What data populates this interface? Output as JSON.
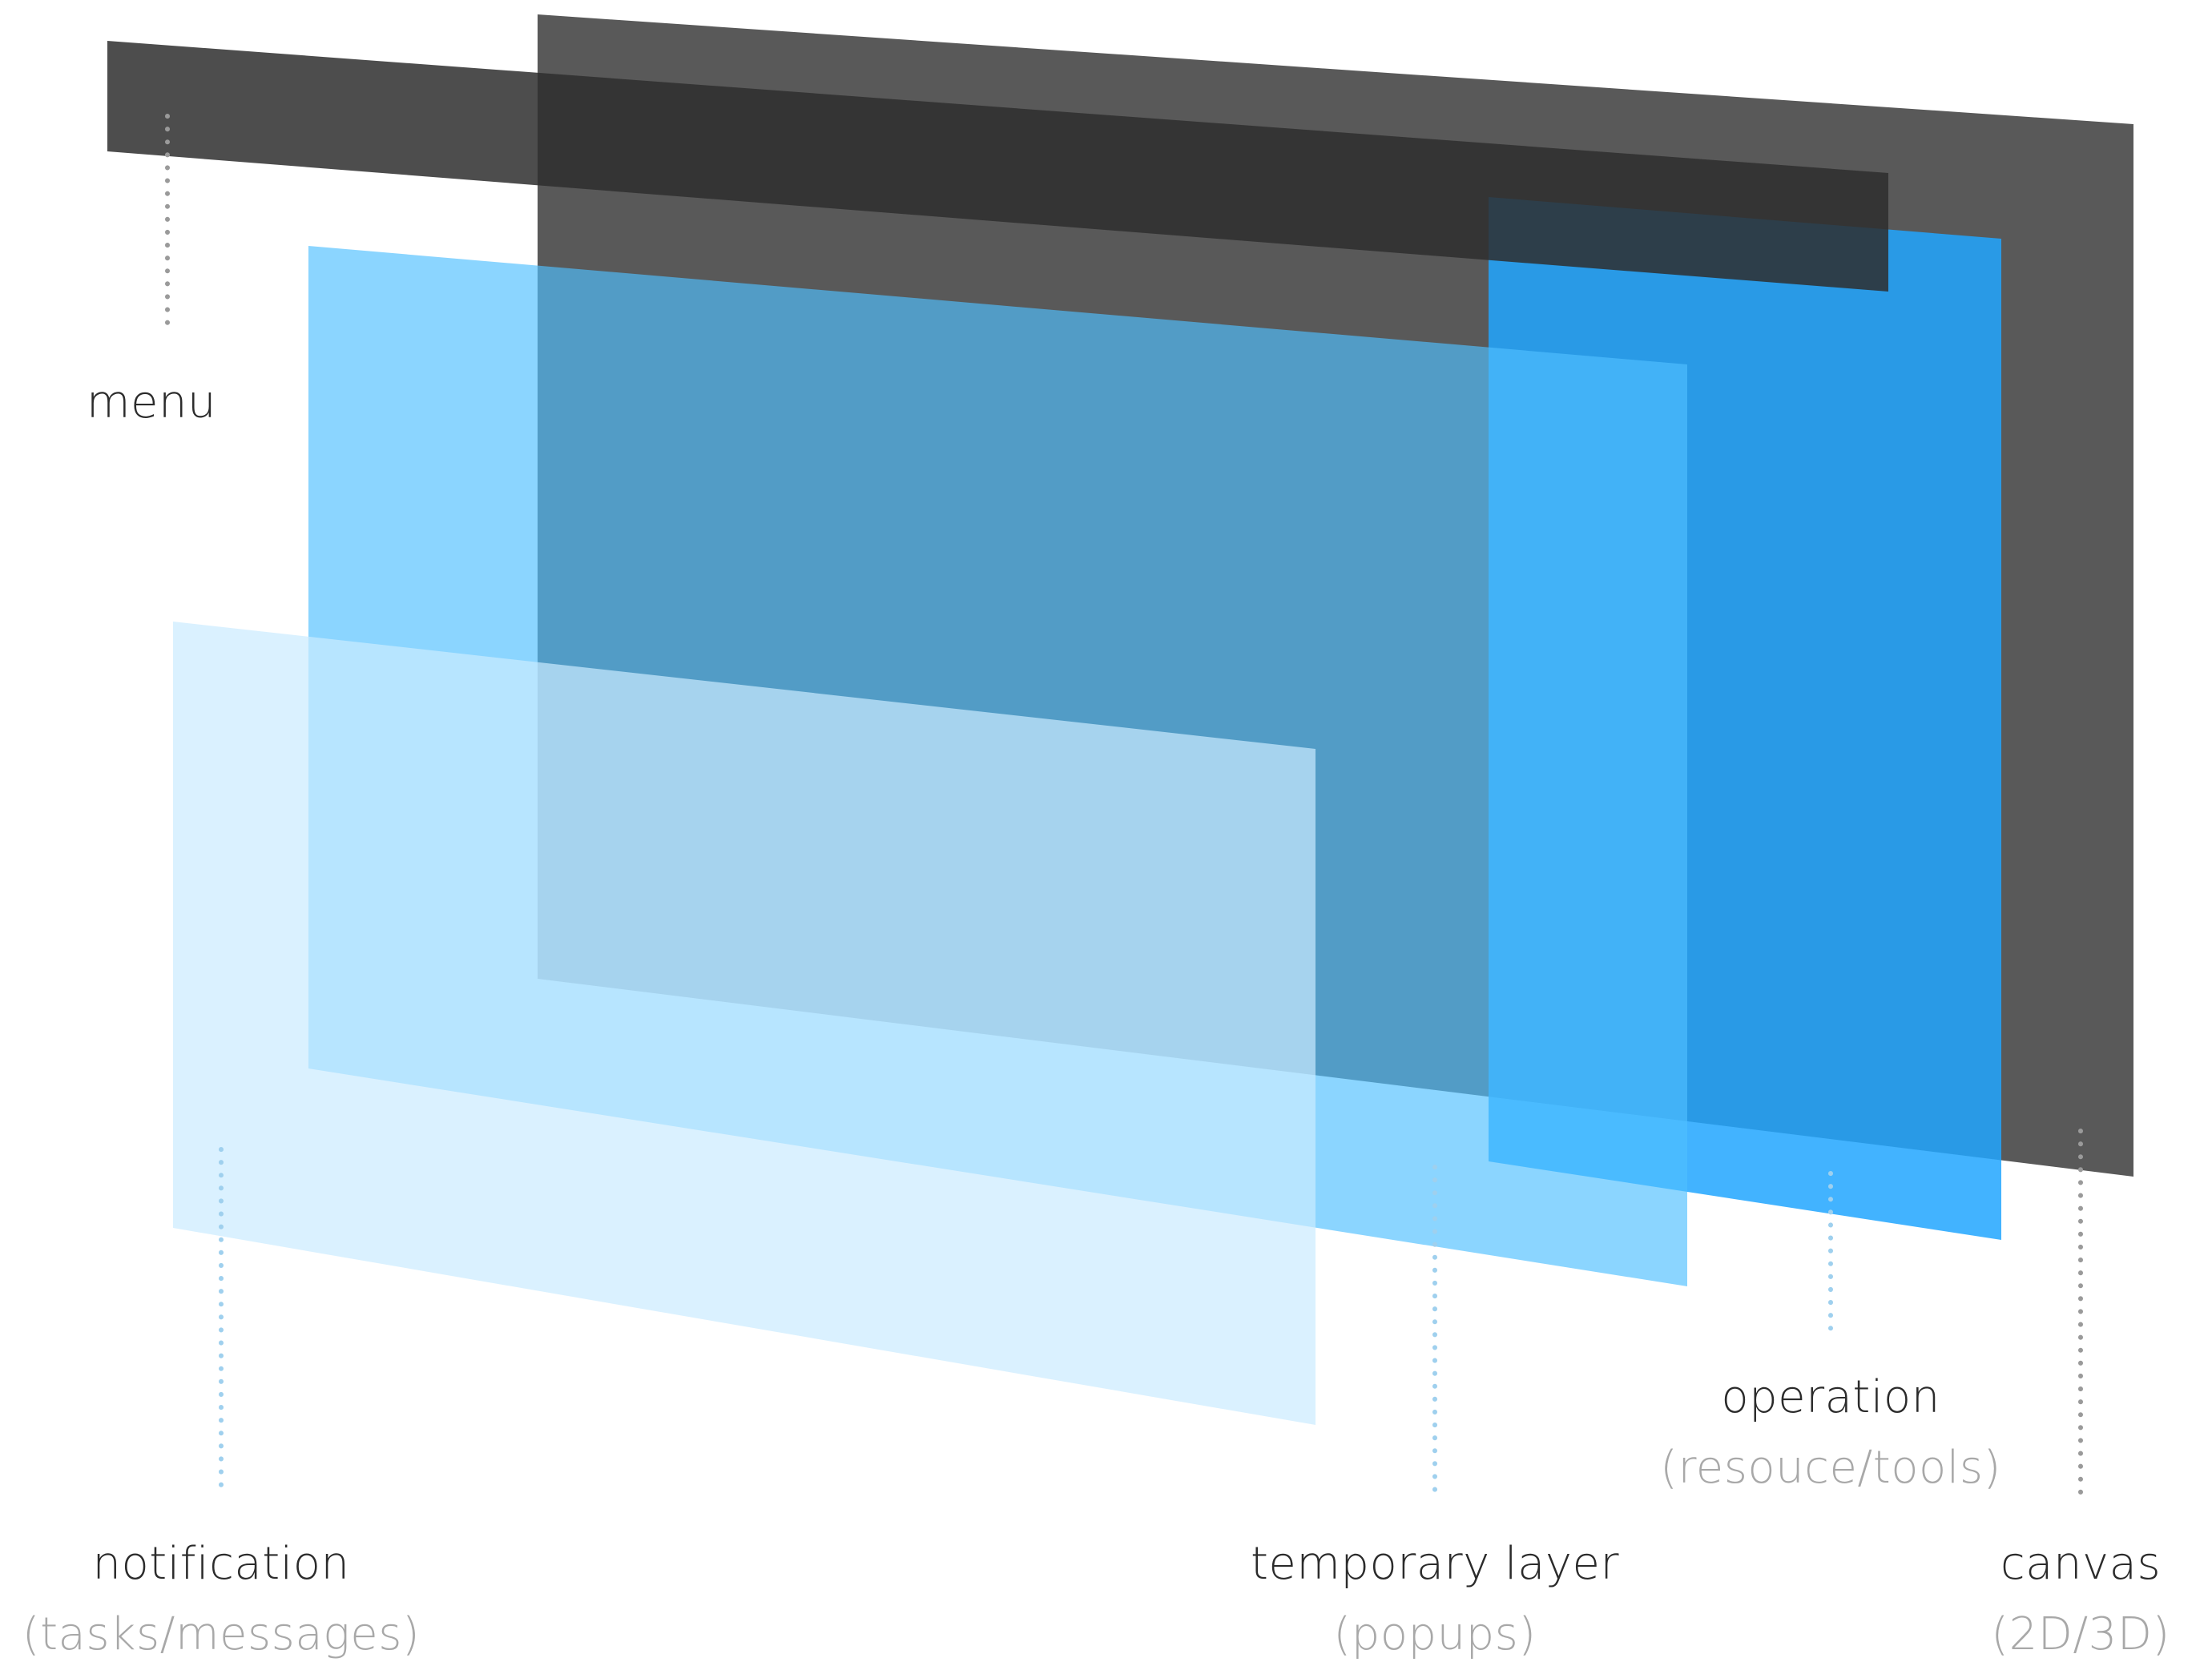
{
  "layers": [
    {
      "id": "canvas",
      "title": "canvas",
      "subtitle": "(2D/3D)"
    },
    {
      "id": "operation",
      "title": "operation",
      "subtitle": "(resouce/tools)"
    },
    {
      "id": "menu",
      "title": "menu",
      "subtitle": ""
    },
    {
      "id": "temporary",
      "title": "temporary layer",
      "subtitle": "(popups)"
    },
    {
      "id": "notification",
      "title": "notification",
      "subtitle": "(tasks/messages)"
    }
  ],
  "colors": {
    "canvas": "#595959",
    "operation": "#21A6FF",
    "menu": "#2E2E2E",
    "temporary": "#4FC0FF",
    "notification": "#CBEBFF",
    "label_title": "#2b2b2b",
    "label_sub": "#a8a8a8",
    "leader_dark": "#9a9a9a",
    "leader_light": "#9fd0ee"
  }
}
